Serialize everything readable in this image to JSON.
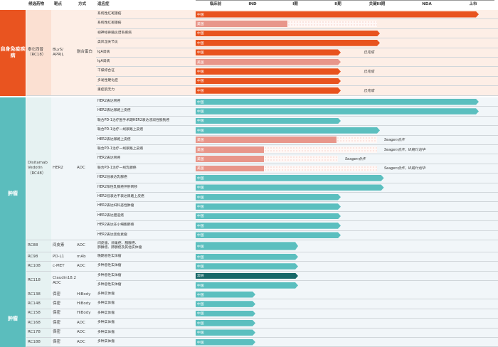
{
  "headers": {
    "drug": "候选药物",
    "target": "靶点",
    "mode": "方式",
    "indication": "适应症"
  },
  "phases": [
    "临床前",
    "IND",
    "I期",
    "II期",
    "关键III期",
    "NDA",
    "上市"
  ],
  "colors": {
    "orange": "#e8531e",
    "pink": "#e8968a",
    "teal": "#5bbfbf",
    "dark_teal": "#176868",
    "auto_bg": "#fdeee6",
    "tumor_bg": "#f1f6f9",
    "drug_auto_bg": "#fbe0d2",
    "drug_tumor_bg": "#e6f2f2"
  },
  "sections": [
    {
      "category": "自身免疫疾病",
      "theme": "auto",
      "groups": [
        {
          "drug": "泰它西普\n（RC18）",
          "target": "BLyS/\nAPRIL",
          "mode": "融合蛋白",
          "rows": [
            {
              "indication": "系统性红斑狼疮",
              "region": "中国",
              "color": "orange",
              "progress": 6
            },
            {
              "indication": "系统性红斑狼疮",
              "region": "美国",
              "color": "pink",
              "progress": 1.75,
              "planned": 4
            },
            {
              "indication": "视神经脊髓炎谱系疾病",
              "region": "中国",
              "color": "orange",
              "progress": 4
            },
            {
              "indication": "类风湿关节炎",
              "region": "中国",
              "color": "orange",
              "progress": 4
            },
            {
              "indication": "IgA肾病",
              "region": "中国",
              "color": "orange",
              "progress": 3,
              "note": "已完成"
            },
            {
              "indication": "IgA肾病",
              "region": "美国",
              "color": "pink",
              "progress": 3
            },
            {
              "indication": "干燥综合征",
              "region": "中国",
              "color": "orange",
              "progress": 3,
              "note": "已完成"
            },
            {
              "indication": "多发性硬化症",
              "region": "中国",
              "color": "orange",
              "progress": 3
            },
            {
              "indication": "重症肌无力",
              "region": "中国",
              "color": "orange",
              "progress": 3,
              "note": "已完成"
            }
          ]
        }
      ]
    },
    {
      "category": "肿瘤",
      "theme": "tumor",
      "groups": [
        {
          "drug": "Disitamab\nVedotin\n（RC48）",
          "target": "HER2",
          "mode": "ADC",
          "rows": [
            {
              "indication": "HER2表达胃癌",
              "region": "中国",
              "color": "teal",
              "progress": 6
            },
            {
              "indication": "HER2表达尿路上皮癌",
              "region": "中国",
              "color": "teal",
              "progress": 6
            },
            {
              "indication": "联合PD-1治疗围手术期HER2表达浸润性膀胱癌",
              "region": "中国",
              "color": "teal",
              "progress": 3
            },
            {
              "indication": "联合PD-1治疗一线尿路上皮癌",
              "region": "中国",
              "color": "teal",
              "progress": 4
            },
            {
              "indication": "HER2表达尿路上皮癌",
              "region": "美国",
              "color": "pink",
              "progress": 2.9,
              "planned": 4,
              "note": "Seagen合作"
            },
            {
              "indication": "联合PD-1治疗一线尿路上皮癌",
              "region": "美国",
              "color": "pink",
              "progress": 1.2,
              "planned": 4,
              "note": "Seagen合作，III期计划中"
            },
            {
              "indication": "HER2表达胃癌",
              "region": "美国",
              "color": "pink",
              "progress": 1.2,
              "planned": 3,
              "note": "Seagen合作"
            },
            {
              "indication": "联合PD-1治疗一线乳腺癌",
              "region": "美国",
              "color": "pink",
              "progress": 1.2,
              "planned": 4,
              "note": "Seagen合作，III期计划中"
            },
            {
              "indication": "HER2低表达乳腺癌",
              "region": "中国",
              "color": "teal",
              "progress": 4.08
            },
            {
              "indication": "HER2阳性乳腺癌伴肝转移",
              "region": "中国",
              "color": "teal",
              "progress": 4.08
            },
            {
              "indication": "HER2低表达不表达尿路上皮癌",
              "region": "中国",
              "color": "teal",
              "progress": 3
            },
            {
              "indication": "HER2表达妇科恶性肿瘤",
              "region": "中国",
              "color": "teal",
              "progress": 3
            },
            {
              "indication": "HER2表达胆道癌",
              "region": "中国",
              "color": "teal",
              "progress": 3
            },
            {
              "indication": "HER2表达非小细胞肺癌",
              "region": "中国",
              "color": "teal",
              "progress": 3
            },
            {
              "indication": "HER2表达黑色素瘤",
              "region": "中国",
              "color": "teal",
              "progress": 3
            }
          ]
        },
        {
          "drug": "RC88",
          "target": "间皮素",
          "mode": "ADC",
          "rows": [
            {
              "indication": "间皮瘤、卵巢癌、胰腺癌、\n肺鳞癌、肺腺癌及其他实体瘤",
              "region": "中国",
              "color": "teal",
              "progress": 2,
              "tall": true
            }
          ]
        },
        {
          "drug": "RC98",
          "target": "PD-L1",
          "mode": "mAb",
          "rows": [
            {
              "indication": "晚期恶性实体瘤",
              "region": "中国",
              "color": "teal",
              "progress": 2
            }
          ]
        },
        {
          "drug": "RC108",
          "target": "c-MET",
          "mode": "ADC",
          "rows": [
            {
              "indication": "多种恶性实体瘤",
              "region": "中国",
              "color": "teal",
              "progress": 2
            }
          ]
        },
        {
          "drug": "RC118",
          "target": "Claudin18.2 ADC",
          "mode": "",
          "rows": [
            {
              "indication": "多种恶性实体瘤",
              "region": "澳洲",
              "color": "dark_teal",
              "progress": 2
            },
            {
              "indication": "多种恶性实体瘤",
              "region": "中国",
              "color": "teal",
              "progress": 2
            }
          ]
        }
      ]
    },
    {
      "category": "肿瘤",
      "theme": "tumor",
      "groups": [
        {
          "drug": "RC138",
          "target": "保密",
          "mode": "HiBody",
          "rows": [
            {
              "indication": "多种实体瘤",
              "region": "中国",
              "color": "teal",
              "progress": 1
            }
          ]
        },
        {
          "drug": "RC148",
          "target": "保密",
          "mode": "HiBody",
          "rows": [
            {
              "indication": "多种实体瘤",
              "region": "中国",
              "color": "teal",
              "progress": 1
            }
          ]
        },
        {
          "drug": "RC158",
          "target": "保密",
          "mode": "HiBody",
          "rows": [
            {
              "indication": "多种实体瘤",
              "region": "中国",
              "color": "teal",
              "progress": 1
            }
          ]
        },
        {
          "drug": "RC168",
          "target": "保密",
          "mode": "ADC",
          "rows": [
            {
              "indication": "多种实体瘤",
              "region": "中国",
              "color": "teal",
              "progress": 1
            }
          ]
        },
        {
          "drug": "RC178",
          "target": "保密",
          "mode": "ADC",
          "rows": [
            {
              "indication": "多种实体瘤",
              "region": "中国",
              "color": "teal",
              "progress": 1
            }
          ]
        },
        {
          "drug": "RC188",
          "target": "保密",
          "mode": "ADC",
          "rows": [
            {
              "indication": "多种实体瘤",
              "region": "中国",
              "color": "teal",
              "progress": 1
            }
          ]
        }
      ]
    }
  ]
}
